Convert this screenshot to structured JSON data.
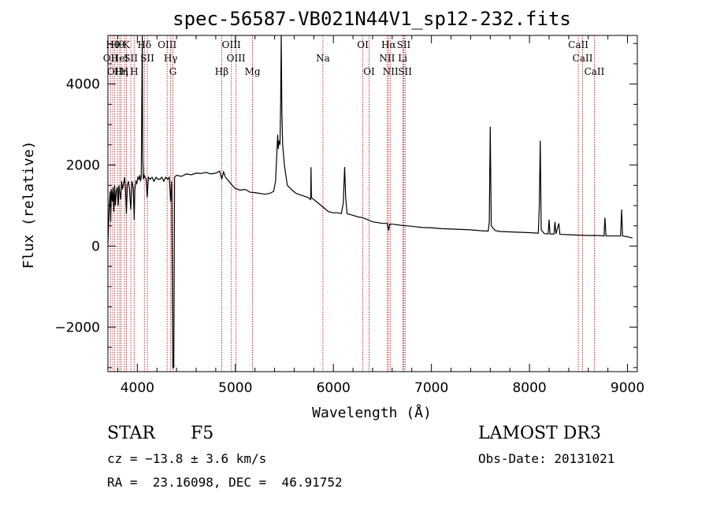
{
  "chart_data": {
    "type": "line",
    "title": "spec-56587-VB021N44V1_sp12-232.fits",
    "xlabel": "Wavelength (Å)",
    "ylabel": "Flux (relative)",
    "xlim": [
      3700,
      9100
    ],
    "ylim": [
      -3100,
      5200
    ],
    "xticks": [
      4000,
      5000,
      6000,
      7000,
      8000,
      9000
    ],
    "yticks": [
      -2000,
      0,
      2000,
      4000
    ],
    "ytick_labels": [
      "−2000",
      "0",
      "2000",
      "4000"
    ],
    "line_color": "#000000",
    "marker_color": "#b22222",
    "series": [
      {
        "name": "flux",
        "points": [
          [
            3700,
            50
          ],
          [
            3712,
            900
          ],
          [
            3722,
            1350
          ],
          [
            3728,
            600
          ],
          [
            3735,
            1400
          ],
          [
            3745,
            1100
          ],
          [
            3752,
            1450
          ],
          [
            3760,
            850
          ],
          [
            3768,
            1500
          ],
          [
            3776,
            1000
          ],
          [
            3785,
            1350
          ],
          [
            3795,
            1450
          ],
          [
            3805,
            1000
          ],
          [
            3812,
            1500
          ],
          [
            3820,
            1350
          ],
          [
            3830,
            1150
          ],
          [
            3840,
            1600
          ],
          [
            3848,
            1400
          ],
          [
            3860,
            1550
          ],
          [
            3870,
            1700
          ],
          [
            3880,
            1400
          ],
          [
            3889,
            800
          ],
          [
            3898,
            1500
          ],
          [
            3910,
            1600
          ],
          [
            3920,
            1400
          ],
          [
            3933,
            900
          ],
          [
            3945,
            1600
          ],
          [
            3958,
            1450
          ],
          [
            3968,
            650
          ],
          [
            3975,
            1400
          ],
          [
            3985,
            1600
          ],
          [
            3995,
            1550
          ],
          [
            4005,
            1700
          ],
          [
            4015,
            1650
          ],
          [
            4025,
            1750
          ],
          [
            4032,
            1600
          ],
          [
            4040,
            1700
          ],
          [
            4050,
            5200
          ],
          [
            4055,
            2200
          ],
          [
            4062,
            1650
          ],
          [
            4070,
            1750
          ],
          [
            4090,
            1650
          ],
          [
            4101,
            1200
          ],
          [
            4112,
            1700
          ],
          [
            4130,
            1650
          ],
          [
            4150,
            1700
          ],
          [
            4170,
            1600
          ],
          [
            4190,
            1700
          ],
          [
            4210,
            1650
          ],
          [
            4230,
            1650
          ],
          [
            4250,
            1700
          ],
          [
            4270,
            1600
          ],
          [
            4290,
            1700
          ],
          [
            4310,
            1650
          ],
          [
            4325,
            1700
          ],
          [
            4340,
            1100
          ],
          [
            4350,
            1600
          ],
          [
            4362,
            -3000
          ],
          [
            4372,
            -3000
          ],
          [
            4380,
            1700
          ],
          [
            4400,
            1750
          ],
          [
            4450,
            1720
          ],
          [
            4500,
            1780
          ],
          [
            4550,
            1760
          ],
          [
            4600,
            1800
          ],
          [
            4650,
            1790
          ],
          [
            4700,
            1820
          ],
          [
            4750,
            1780
          ],
          [
            4800,
            1800
          ],
          [
            4840,
            1850
          ],
          [
            4861,
            1650
          ],
          [
            4880,
            1830
          ],
          [
            4900,
            1700
          ],
          [
            4950,
            1550
          ],
          [
            5000,
            1420
          ],
          [
            5050,
            1380
          ],
          [
            5100,
            1400
          ],
          [
            5150,
            1330
          ],
          [
            5200,
            1320
          ],
          [
            5250,
            1300
          ],
          [
            5300,
            1280
          ],
          [
            5350,
            1300
          ],
          [
            5390,
            1350
          ],
          [
            5410,
            1600
          ],
          [
            5425,
            2400
          ],
          [
            5432,
            2750
          ],
          [
            5438,
            2400
          ],
          [
            5445,
            2600
          ],
          [
            5455,
            2500
          ],
          [
            5462,
            3600
          ],
          [
            5468,
            5200
          ],
          [
            5474,
            3300
          ],
          [
            5482,
            2500
          ],
          [
            5500,
            2000
          ],
          [
            5530,
            1500
          ],
          [
            5570,
            1400
          ],
          [
            5620,
            1300
          ],
          [
            5680,
            1250
          ],
          [
            5740,
            1200
          ],
          [
            5768,
            1150
          ],
          [
            5772,
            1950
          ],
          [
            5776,
            1200
          ],
          [
            5800,
            1150
          ],
          [
            5850,
            1050
          ],
          [
            5900,
            950
          ],
          [
            5950,
            850
          ],
          [
            6000,
            820
          ],
          [
            6050,
            820
          ],
          [
            6080,
            800
          ],
          [
            6100,
            1050
          ],
          [
            6115,
            1950
          ],
          [
            6125,
            1200
          ],
          [
            6140,
            800
          ],
          [
            6200,
            760
          ],
          [
            6250,
            720
          ],
          [
            6300,
            700
          ],
          [
            6350,
            650
          ],
          [
            6400,
            600
          ],
          [
            6450,
            580
          ],
          [
            6500,
            560
          ],
          [
            6550,
            560
          ],
          [
            6563,
            380
          ],
          [
            6575,
            540
          ],
          [
            6600,
            540
          ],
          [
            6700,
            510
          ],
          [
            6800,
            490
          ],
          [
            6900,
            460
          ],
          [
            7000,
            450
          ],
          [
            7100,
            430
          ],
          [
            7200,
            420
          ],
          [
            7300,
            410
          ],
          [
            7400,
            400
          ],
          [
            7500,
            380
          ],
          [
            7580,
            370
          ],
          [
            7590,
            600
          ],
          [
            7600,
            2950
          ],
          [
            7610,
            500
          ],
          [
            7650,
            380
          ],
          [
            7700,
            360
          ],
          [
            7800,
            350
          ],
          [
            7900,
            340
          ],
          [
            8000,
            330
          ],
          [
            8090,
            320
          ],
          [
            8100,
            1000
          ],
          [
            8110,
            2600
          ],
          [
            8120,
            400
          ],
          [
            8150,
            310
          ],
          [
            8190,
            300
          ],
          [
            8200,
            650
          ],
          [
            8210,
            300
          ],
          [
            8250,
            300
          ],
          [
            8260,
            600
          ],
          [
            8270,
            300
          ],
          [
            8300,
            560
          ],
          [
            8310,
            290
          ],
          [
            8400,
            280
          ],
          [
            8500,
            270
          ],
          [
            8600,
            260
          ],
          [
            8700,
            260
          ],
          [
            8760,
            250
          ],
          [
            8770,
            700
          ],
          [
            8780,
            250
          ],
          [
            8850,
            250
          ],
          [
            8930,
            250
          ],
          [
            8940,
            900
          ],
          [
            8950,
            250
          ],
          [
            9000,
            230
          ],
          [
            9050,
            200
          ]
        ]
      }
    ],
    "lines": [
      {
        "x": 3727,
        "label": "OII",
        "row": 2
      },
      {
        "x": 3750,
        "label": "Hθ",
        "row": 1
      },
      {
        "x": 3770,
        "label": "OII",
        "row": 3
      },
      {
        "x": 3798,
        "label": "Hθ",
        "row": 1
      },
      {
        "x": 3820,
        "label": "HeI",
        "row": 2
      },
      {
        "x": 3835,
        "label": "Hη",
        "row": 3
      },
      {
        "x": 3869,
        "label": "H",
        "row": 3
      },
      {
        "x": 3889,
        "label": "K",
        "row": 1
      },
      {
        "x": 3934,
        "label": "SII",
        "row": 2
      },
      {
        "x": 3968,
        "label": "H",
        "row": 3
      },
      {
        "x": 4072,
        "label": "Hδ",
        "row": 1
      },
      {
        "x": 4102,
        "label": "SII",
        "row": 2
      },
      {
        "x": 4304,
        "label": "OIII",
        "row": 1
      },
      {
        "x": 4340,
        "label": "Hγ",
        "row": 2
      },
      {
        "x": 4363,
        "label": "G",
        "row": 3
      },
      {
        "x": 4861,
        "label": "Hβ",
        "row": 3
      },
      {
        "x": 4959,
        "label": "OIII",
        "row": 1
      },
      {
        "x": 5007,
        "label": "OIII",
        "row": 2
      },
      {
        "x": 5175,
        "label": "Mg",
        "row": 3
      },
      {
        "x": 5893,
        "label": "Na",
        "row": 2
      },
      {
        "x": 6300,
        "label": "OI",
        "row": 1
      },
      {
        "x": 6364,
        "label": "OI",
        "row": 3
      },
      {
        "x": 6548,
        "label": "NII",
        "row": 2
      },
      {
        "x": 6563,
        "label": "Hα",
        "row": 1
      },
      {
        "x": 6583,
        "label": "NII",
        "row": 3
      },
      {
        "x": 6707,
        "label": "Li",
        "row": 2
      },
      {
        "x": 6717,
        "label": "SII",
        "row": 1
      },
      {
        "x": 6731,
        "label": "SII",
        "row": 3
      },
      {
        "x": 8498,
        "label": "CaII",
        "row": 1
      },
      {
        "x": 8542,
        "label": "CaII",
        "row": 2
      },
      {
        "x": 8662,
        "label": "CaII",
        "row": 3
      }
    ]
  },
  "info": {
    "class_label": "STAR",
    "subclass": "F5",
    "survey": "LAMOST DR3",
    "cz": "cz = −13.8 ± 3.6 km/s",
    "obs_date": "Obs-Date: 20131021",
    "coords": "RA =  23.16098, DEC =  46.91752"
  }
}
